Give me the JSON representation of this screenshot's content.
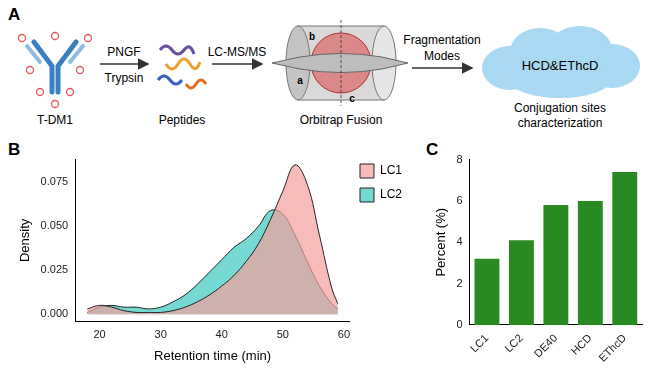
{
  "diagram": {
    "panel": "A",
    "antibody": "T-DM1",
    "step1_above": "PNGF",
    "step1_below": "Trypsin",
    "product": "Peptides",
    "step2": "LC-MS/MS",
    "instrument": "Orbitrap Fusion",
    "instrument_parts": [
      "a",
      "b",
      "c"
    ],
    "step3": [
      "Fragmentation",
      "Modes"
    ],
    "result": "HCD&EThcD",
    "caption": [
      "Conjugation sites",
      "characterization"
    ]
  },
  "chart_data": [
    {
      "panel": "B",
      "type": "area",
      "x_label": "Retention time (min)",
      "y_label": "Density",
      "x": [
        18,
        20,
        22,
        24,
        26,
        28,
        30,
        32,
        34,
        36,
        38,
        40,
        42,
        44,
        46,
        48,
        50,
        52,
        54,
        56,
        58,
        59
      ],
      "series": [
        {
          "name": "LC1",
          "color": "#f4a09c",
          "values": [
            0.003,
            0.005,
            0.004,
            0.002,
            0.001,
            0.001,
            0.001,
            0.002,
            0.004,
            0.007,
            0.011,
            0.016,
            0.022,
            0.03,
            0.04,
            0.054,
            0.07,
            0.085,
            0.074,
            0.045,
            0.015,
            0.006
          ]
        },
        {
          "name": "LC2",
          "color": "#3cc8c0",
          "values": [
            0.001,
            0.004,
            0.005,
            0.004,
            0.004,
            0.003,
            0.004,
            0.007,
            0.011,
            0.017,
            0.024,
            0.031,
            0.038,
            0.043,
            0.05,
            0.059,
            0.057,
            0.045,
            0.03,
            0.016,
            0.006,
            0.003
          ]
        }
      ],
      "xlim": [
        16,
        61
      ],
      "xticks": [
        20,
        30,
        40,
        50,
        60
      ],
      "ylim": [
        -0.004,
        0.088
      ],
      "yticks": [
        {
          "value": 0,
          "label": "0.000"
        },
        {
          "value": 0.025,
          "label": "0.025"
        },
        {
          "value": 0.05,
          "label": "0.050"
        },
        {
          "value": 0.075,
          "label": "0.075"
        }
      ],
      "grid": false,
      "legend": "right"
    },
    {
      "panel": "C",
      "type": "bar",
      "y_label": "Percent (%)",
      "categories": [
        "LC1",
        "LC2",
        "DE40",
        "HCD",
        "EThcD"
      ],
      "values": [
        3.2,
        4.1,
        5.8,
        6.0,
        7.4
      ],
      "color": "#2a8a22",
      "ylim": [
        0,
        8
      ],
      "yticks": [
        0,
        2,
        4,
        6,
        8
      ],
      "grid": false
    }
  ]
}
